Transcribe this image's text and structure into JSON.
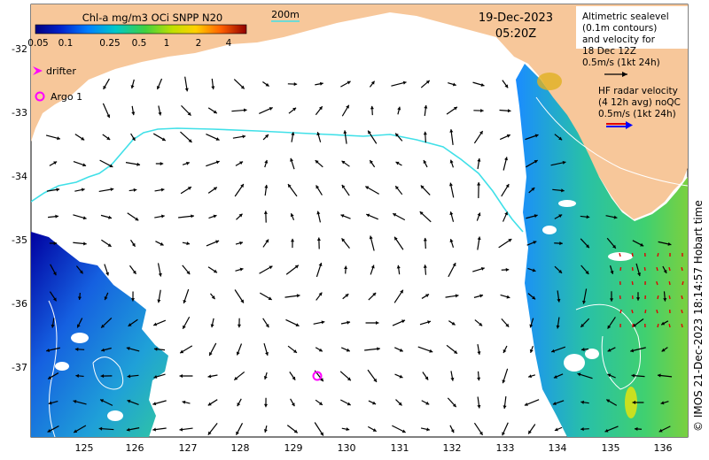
{
  "colorbar": {
    "title": "Chl-a mg/m3 OCi SNPP N20",
    "ticks": [
      "0.05",
      "0.1",
      "0.25",
      "0.5",
      "1",
      "2",
      "4"
    ]
  },
  "scale_label": "200m",
  "date": "19-Dec-2023",
  "time": "05:20Z",
  "altimetry_legend": [
    "Altimetric sealevel",
    "(0.1m contours)",
    "and velocity for",
    "18 Dec 12Z",
    "0.5m/s (1kt 24h)"
  ],
  "hf_legend": [
    "HF radar velocity",
    "(4 12h avg) noQC",
    "0.5m/s (1kt 24h)"
  ],
  "drifter_label": "drifter",
  "argo_label": "Argo 1",
  "y_ticks": [
    "-32",
    "-33",
    "-34",
    "-35",
    "-36",
    "-37"
  ],
  "x_ticks": [
    "125",
    "126",
    "127",
    "128",
    "129",
    "130",
    "131",
    "132",
    "133",
    "134",
    "135",
    "136"
  ],
  "credit": "© IMOS 21-Dec-2023 18:14:57 Hobart time",
  "colors": {
    "land": "#f7c79a",
    "contour": "#40e0e8",
    "drifter": "#ff00ff",
    "argo": "#ff00ff",
    "hf_arrow_red": "#e00000",
    "hf_arrow_blue": "#0000ff"
  }
}
